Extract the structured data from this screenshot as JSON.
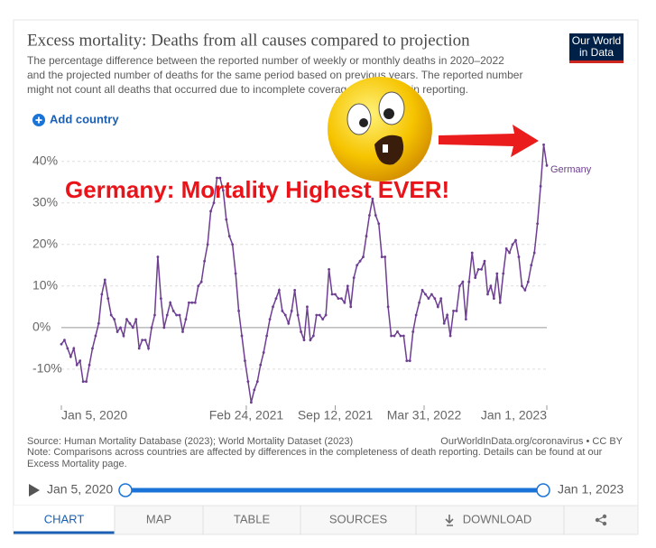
{
  "chart_data": {
    "type": "line",
    "title": "Excess mortality: Deaths from all causes compared to projection",
    "subtitle": [
      "The percentage difference between the reported number of weekly or monthly deaths in 2020–2022",
      "and the projected number of deaths for the same period based on previous years. The reported number",
      "might not count all deaths that occurred due to incomplete coverage and delays in reporting."
    ],
    "add_country": "Add country",
    "annotation": "Germany: Mortality Highest EVER!",
    "logo": [
      "Our World",
      "in Data"
    ],
    "source": "Source: Human Mortality Database (2023); World Mortality Dataset (2023)",
    "note": [
      "Note: Comparisons across countries are affected by differences in the completeness of death reporting. Details can be found at our",
      "Excess Mortality page."
    ],
    "credit": "OurWorldInData.org/coronavirus • CC BY",
    "timeline": {
      "start": "Jan 5, 2020",
      "end": "Jan 1, 2023"
    },
    "tabs": [
      "CHART",
      "MAP",
      "TABLE",
      "SOURCES",
      "DOWNLOAD"
    ],
    "x": [
      "2020-01-05",
      "2020-01-12",
      "2020-01-19",
      "2020-01-26",
      "2020-02-02",
      "2020-02-09",
      "2020-02-16",
      "2020-02-23",
      "2020-03-01",
      "2020-03-08",
      "2020-03-15",
      "2020-03-22",
      "2020-03-29",
      "2020-04-05",
      "2020-04-12",
      "2020-04-19",
      "2020-04-26",
      "2020-05-03",
      "2020-05-10",
      "2020-05-17",
      "2020-05-24",
      "2020-05-31",
      "2020-06-07",
      "2020-06-14",
      "2020-06-21",
      "2020-06-28",
      "2020-07-05",
      "2020-07-12",
      "2020-07-19",
      "2020-07-26",
      "2020-08-02",
      "2020-08-09",
      "2020-08-16",
      "2020-08-23",
      "2020-08-30",
      "2020-09-06",
      "2020-09-13",
      "2020-09-20",
      "2020-09-27",
      "2020-10-04",
      "2020-10-11",
      "2020-10-18",
      "2020-10-25",
      "2020-11-01",
      "2020-11-08",
      "2020-11-15",
      "2020-11-22",
      "2020-11-29",
      "2020-12-06",
      "2020-12-13",
      "2020-12-20",
      "2020-12-27",
      "2021-01-03",
      "2021-01-10",
      "2021-01-17",
      "2021-01-24",
      "2021-01-31",
      "2021-02-07",
      "2021-02-14",
      "2021-02-21",
      "2021-02-28",
      "2021-03-07",
      "2021-03-14",
      "2021-03-21",
      "2021-03-28",
      "2021-04-04",
      "2021-04-11",
      "2021-04-18",
      "2021-04-25",
      "2021-05-02",
      "2021-05-09",
      "2021-05-16",
      "2021-05-23",
      "2021-05-30",
      "2021-06-06",
      "2021-06-13",
      "2021-06-20",
      "2021-06-27",
      "2021-07-04",
      "2021-07-11",
      "2021-07-18",
      "2021-07-25",
      "2021-08-01",
      "2021-08-08",
      "2021-08-15",
      "2021-08-22",
      "2021-08-29",
      "2021-09-05",
      "2021-09-12",
      "2021-09-19",
      "2021-09-26",
      "2021-10-03",
      "2021-10-10",
      "2021-10-17",
      "2021-10-24",
      "2021-10-31",
      "2021-11-07",
      "2021-11-14",
      "2021-11-21",
      "2021-11-28",
      "2021-12-05",
      "2021-12-12",
      "2021-12-19",
      "2021-12-26",
      "2022-01-02",
      "2022-01-09",
      "2022-01-16",
      "2022-01-23",
      "2022-01-30",
      "2022-02-06",
      "2022-02-13",
      "2022-02-20",
      "2022-02-27",
      "2022-03-06",
      "2022-03-13",
      "2022-03-20",
      "2022-03-27",
      "2022-04-03",
      "2022-04-10",
      "2022-04-17",
      "2022-04-24",
      "2022-05-01",
      "2022-05-08",
      "2022-05-15",
      "2022-05-22",
      "2022-05-29",
      "2022-06-05",
      "2022-06-12",
      "2022-06-19",
      "2022-06-26",
      "2022-07-03",
      "2022-07-10",
      "2022-07-17",
      "2022-07-24",
      "2022-07-31",
      "2022-08-07",
      "2022-08-14",
      "2022-08-21",
      "2022-08-28",
      "2022-09-04",
      "2022-09-11",
      "2022-09-18",
      "2022-09-25",
      "2022-10-02",
      "2022-10-09",
      "2022-10-16",
      "2022-10-23",
      "2022-10-30",
      "2022-11-06",
      "2022-11-13",
      "2022-11-20",
      "2022-11-27",
      "2022-12-04",
      "2022-12-11",
      "2022-12-18",
      "2022-12-25",
      "2023-01-01"
    ],
    "series": [
      {
        "name": "Germany",
        "color": "#6d3e91",
        "values": [
          -4,
          -3,
          -5,
          -7,
          -5,
          -9,
          -8,
          -13,
          -13,
          -9,
          -5,
          -2,
          1,
          8,
          11.5,
          7,
          3,
          2,
          -1,
          0,
          -2,
          2,
          1,
          0,
          2,
          -5,
          -3,
          -3,
          -5,
          0,
          3,
          17,
          7,
          0,
          3,
          6,
          4,
          3,
          3,
          -1,
          2,
          6,
          6,
          6,
          10,
          11,
          16,
          20,
          28,
          30,
          36,
          36,
          33,
          26,
          22,
          20,
          13,
          4,
          -2,
          -8,
          -13,
          -18,
          -15,
          -13,
          -9,
          -6,
          -2,
          2,
          5,
          7,
          9,
          4,
          3,
          1,
          4,
          9,
          3,
          -1,
          -3,
          5,
          -3,
          -2,
          3,
          3,
          2,
          3,
          14,
          8,
          8,
          7,
          7,
          6,
          10,
          5,
          12,
          15,
          16,
          17,
          22,
          27,
          31,
          27,
          25,
          17,
          17,
          5,
          -2,
          -2,
          -1,
          -2,
          -2,
          -8,
          -8,
          -1,
          3,
          6,
          9,
          8,
          7,
          8,
          7,
          5,
          7,
          1,
          3,
          -2,
          4,
          4,
          10,
          11,
          2,
          11,
          18,
          12,
          14,
          14,
          16,
          8,
          10,
          7,
          13,
          6,
          13,
          19,
          18,
          20,
          21,
          17,
          10,
          9,
          11,
          15,
          18,
          25,
          34,
          44,
          39
        ]
      }
    ],
    "xlim": [
      "2020-01-05",
      "2023-01-01"
    ],
    "xticks": [
      {
        "value": "2020-01-05",
        "label": "Jan 5, 2020"
      },
      {
        "value": "2021-02-24",
        "label": "Feb 24, 2021"
      },
      {
        "value": "2021-09-12",
        "label": "Sep 12, 2021"
      },
      {
        "value": "2022-03-31",
        "label": "Mar 31, 2022"
      },
      {
        "value": "2023-01-01",
        "label": "Jan 1, 2023"
      }
    ],
    "ylim": [
      -18.5,
      44.5
    ],
    "yticks": [
      {
        "value": -10,
        "label": "-10%"
      },
      {
        "value": 0,
        "label": "0%"
      },
      {
        "value": 10,
        "label": "10%"
      },
      {
        "value": 20,
        "label": "20%"
      },
      {
        "value": 30,
        "label": "30%"
      },
      {
        "value": 40,
        "label": "40%"
      }
    ],
    "grid": true
  }
}
